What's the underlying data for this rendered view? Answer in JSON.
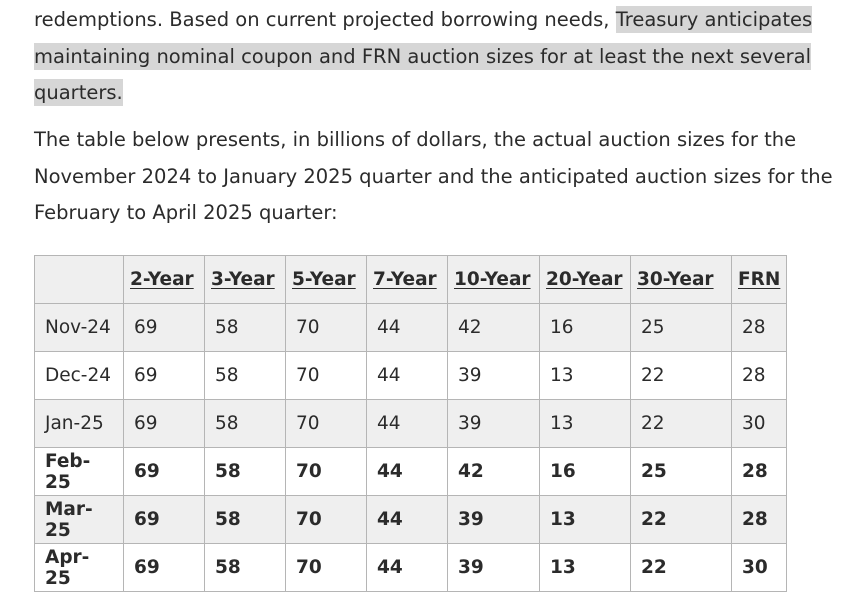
{
  "paragraph1": {
    "text_before": "redemptions. Based on current projected borrowing needs, ",
    "highlighted_line1": "Treasury anticipates",
    "highlighted_line2": "maintaining nominal coupon and FRN auction sizes for at least the next several",
    "highlighted_line3": "quarters."
  },
  "paragraph2": {
    "line1": "The table below presents, in billions of dollars, the actual auction sizes for the",
    "line2": "November 2024 to January 2025 quarter and the anticipated auction sizes for the",
    "line3": "February to April 2025 quarter:"
  },
  "table": {
    "columns": [
      "",
      "2-Year",
      "3-Year",
      "5-Year",
      "7-Year",
      "10-Year",
      "20-Year",
      "30-Year",
      "FRN"
    ],
    "rows": [
      {
        "label": "Nov-24",
        "values": [
          "69",
          "58",
          "70",
          "44",
          "42",
          "16",
          "25",
          "28"
        ],
        "bold": false
      },
      {
        "label": "Dec-24",
        "values": [
          "69",
          "58",
          "70",
          "44",
          "39",
          "13",
          "22",
          "28"
        ],
        "bold": false
      },
      {
        "label": "Jan-25",
        "values": [
          "69",
          "58",
          "70",
          "44",
          "39",
          "13",
          "22",
          "30"
        ],
        "bold": false
      },
      {
        "label": "Feb-25",
        "values": [
          "69",
          "58",
          "70",
          "44",
          "42",
          "16",
          "25",
          "28"
        ],
        "bold": true
      },
      {
        "label": "Mar-25",
        "values": [
          "69",
          "58",
          "70",
          "44",
          "39",
          "13",
          "22",
          "28"
        ],
        "bold": true
      },
      {
        "label": "Apr-25",
        "values": [
          "69",
          "58",
          "70",
          "44",
          "39",
          "13",
          "22",
          "30"
        ],
        "bold": true
      }
    ]
  },
  "colors": {
    "highlight": "#d6d6d6",
    "header_bg": "#efefef",
    "stripe_bg": "#efefef",
    "border": "#b5b5b5",
    "text": "#2b2b2b"
  }
}
